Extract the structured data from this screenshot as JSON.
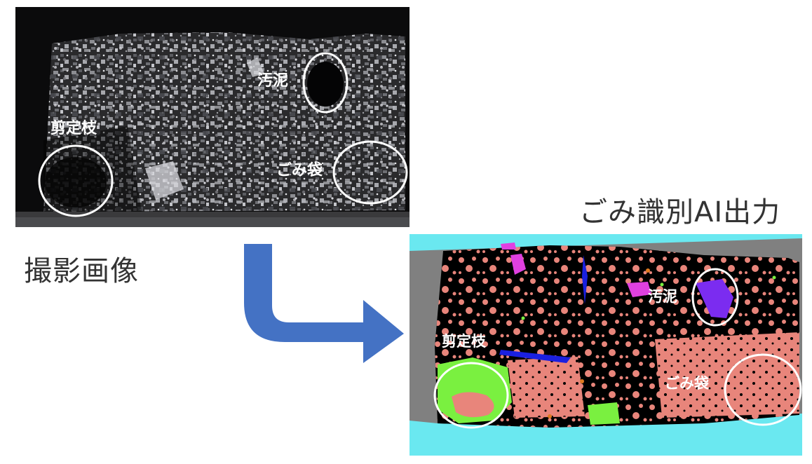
{
  "captions": {
    "photo": "撮影画像",
    "ai_output": "ごみ識別AI出力"
  },
  "annotations": {
    "sludge": "汚泥",
    "pruned_branches": "剪定枝",
    "garbage_bag": "ごみ袋"
  },
  "colors": {
    "arrow": "#4472c4",
    "segmentation_bg": "#000000",
    "pruned_branches": "#7af040",
    "sludge": "#7b2cf0",
    "garbage_bag": "#e8857b",
    "cyan_region": "#6ae8f0",
    "gray_region": "#808080",
    "magenta": "#e040e0",
    "blue": "#1a20e0",
    "highlight_ring": "#ffffff"
  }
}
